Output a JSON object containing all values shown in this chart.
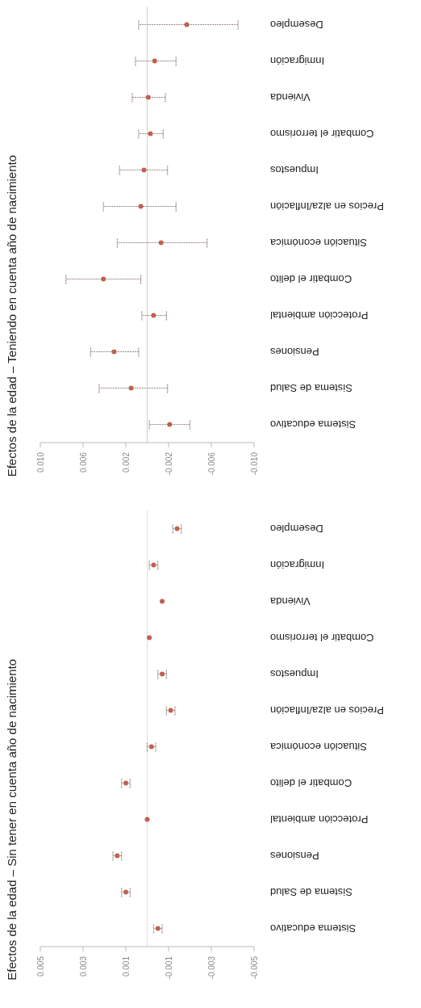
{
  "chart_data": [
    {
      "type": "scatter",
      "orientation": "horizontal",
      "title": "Efectos de la edad – Teniendo en cuenta año de nacimiento",
      "categories": [
        "Desempleo",
        "Inmigración",
        "Vivienda",
        "Combatir el terrorismo",
        "Impuestos",
        "Precios en alza/Inflación",
        "Situación económica",
        "Combatir el delito",
        "Protección ambiental",
        "Pensiones",
        "Sistema de Salud",
        "Sistema educativo"
      ],
      "series": [
        {
          "color": "#c0604f",
          "values": [
            -0.0037,
            -0.0007,
            -0.0001,
            -0.0003,
            0.0003,
            0.0006,
            -0.0013,
            0.0041,
            -0.0006,
            0.0031,
            0.0015,
            -0.0021
          ],
          "errors": [
            [
              -0.0085,
              0.0008
            ],
            [
              -0.0027,
              0.0011
            ],
            [
              -0.0017,
              0.0014
            ],
            [
              -0.0015,
              0.0008
            ],
            [
              -0.0019,
              0.0026
            ],
            [
              -0.0027,
              0.0041
            ],
            [
              -0.0056,
              0.0028
            ],
            [
              0.0006,
              0.0076
            ],
            [
              -0.0018,
              0.0005
            ],
            [
              0.0008,
              0.0053
            ],
            [
              -0.0019,
              0.0045
            ],
            [
              -0.004,
              -0.0002
            ]
          ]
        }
      ],
      "xlim": [
        0.01,
        -0.01
      ],
      "xticks": [
        {
          "value": 0.01,
          "label": "0.010"
        },
        0.006,
        0.002,
        -0.002,
        -0.006,
        {
          "value": -0.01,
          "label": "-0.010"
        }
      ],
      "ref_lines": [
        {
          "axis": "x",
          "value": 0,
          "color": "#d0d0d0"
        }
      ],
      "marker": "circle"
    },
    {
      "type": "scatter",
      "orientation": "horizontal",
      "title": "Efectos de la edad – Sin tener en cuenta año de nacimiento",
      "categories": [
        "Desempleo",
        "Inmigración",
        "Vivienda",
        "Combatir el terrorismo",
        "Impuestos",
        "Precios en alza/Inflación",
        "Situación económica",
        "Combatir el delito",
        "Protección ambiental",
        "Pensiones",
        "Sistema de Salud",
        "Sistema educativo"
      ],
      "series": [
        {
          "color": "#c0604f",
          "values": [
            -0.0014,
            -0.0003,
            -0.0007,
            -0.0001,
            -0.0007,
            -0.0011,
            -0.0002,
            0.001,
            0,
            0.0014,
            0.001,
            -0.0005
          ],
          "errors": [
            0.0002,
            0.0002,
            null,
            null,
            0.0002,
            0.0002,
            0.0002,
            0.0002,
            null,
            0.0002,
            0.0002,
            0.0002
          ]
        }
      ],
      "xlim": [
        0.005,
        -0.005
      ],
      "xticks": [
        0.005,
        0.003,
        0.001,
        -0.001,
        -0.003,
        -0.005
      ],
      "ref_lines": [
        {
          "axis": "x",
          "value": 0,
          "color": "#e0e0e0"
        }
      ],
      "marker": "circle"
    }
  ]
}
